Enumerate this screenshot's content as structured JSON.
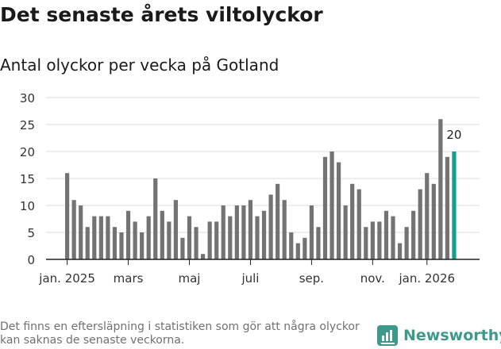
{
  "header": {
    "title": "Det senaste årets viltolyckor",
    "subtitle": "Antal olyckor per vecka på Gotland"
  },
  "footer": {
    "note": "Det finns en eftersläpning i statistiken som gör att några olyckor kan saknas de senaste veckorna.",
    "brand": "Newsworthy"
  },
  "colors": {
    "bar": "#737373",
    "highlight": "#14a08c",
    "grid": "#dddddd",
    "axis": "#222222",
    "brand": "#3d9a8b"
  },
  "chart_data": {
    "type": "bar",
    "title": "Antal olyckor per vecka på Gotland",
    "xlabel": "",
    "ylabel": "",
    "ylim": [
      0,
      30
    ],
    "yticks": [
      0,
      5,
      10,
      15,
      20,
      25,
      30
    ],
    "x_tick_labels": [
      {
        "label": "jan. 2025",
        "index": 0
      },
      {
        "label": "mars",
        "index": 9
      },
      {
        "label": "maj",
        "index": 18
      },
      {
        "label": "juli",
        "index": 27
      },
      {
        "label": "sep.",
        "index": 36
      },
      {
        "label": "nov.",
        "index": 45
      },
      {
        "label": "jan. 2026",
        "index": 53
      }
    ],
    "values": [
      16,
      11,
      10,
      6,
      8,
      8,
      8,
      6,
      5,
      9,
      7,
      5,
      8,
      15,
      9,
      7,
      11,
      4,
      8,
      6,
      1,
      7,
      7,
      10,
      8,
      10,
      10,
      11,
      8,
      9,
      12,
      14,
      11,
      5,
      3,
      4,
      10,
      6,
      19,
      20,
      18,
      10,
      14,
      13,
      6,
      7,
      7,
      9,
      8,
      3,
      6,
      9,
      13,
      16,
      14,
      26,
      19,
      20
    ],
    "highlight_index": 57,
    "highlight_label": "20"
  }
}
